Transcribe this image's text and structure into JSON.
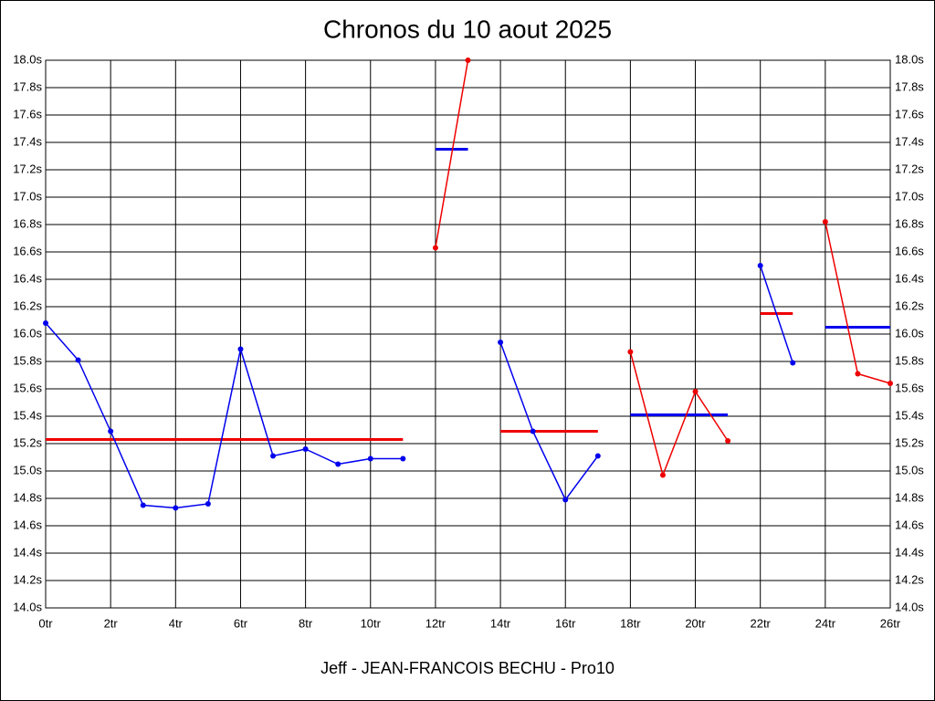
{
  "chart_data": {
    "type": "line",
    "title": "Chronos du 10 aout 2025",
    "xlabel": "Jeff - JEAN-FRANCOIS BECHU - Pro10",
    "xlim": [
      0,
      26
    ],
    "xticks": [
      {
        "value": 0,
        "label": "0tr"
      },
      {
        "value": 2,
        "label": "2tr"
      },
      {
        "value": 4,
        "label": "4tr"
      },
      {
        "value": 6,
        "label": "6tr"
      },
      {
        "value": 8,
        "label": "8tr"
      },
      {
        "value": 10,
        "label": "10tr"
      },
      {
        "value": 12,
        "label": "12tr"
      },
      {
        "value": 14,
        "label": "14tr"
      },
      {
        "value": 16,
        "label": "16tr"
      },
      {
        "value": 18,
        "label": "18tr"
      },
      {
        "value": 20,
        "label": "20tr"
      },
      {
        "value": 22,
        "label": "22tr"
      },
      {
        "value": 24,
        "label": "24tr"
      },
      {
        "value": 26,
        "label": "26tr"
      }
    ],
    "ylim": [
      14.0,
      18.0
    ],
    "yticks": [
      {
        "value": 14.0,
        "label": "14.0s"
      },
      {
        "value": 14.2,
        "label": "14.2s"
      },
      {
        "value": 14.4,
        "label": "14.4s"
      },
      {
        "value": 14.6,
        "label": "14.6s"
      },
      {
        "value": 14.8,
        "label": "14.8s"
      },
      {
        "value": 15.0,
        "label": "15.0s"
      },
      {
        "value": 15.2,
        "label": "15.2s"
      },
      {
        "value": 15.4,
        "label": "15.4s"
      },
      {
        "value": 15.6,
        "label": "15.6s"
      },
      {
        "value": 15.8,
        "label": "15.8s"
      },
      {
        "value": 16.0,
        "label": "16.0s"
      },
      {
        "value": 16.2,
        "label": "16.2s"
      },
      {
        "value": 16.4,
        "label": "16.4s"
      },
      {
        "value": 16.6,
        "label": "16.6s"
      },
      {
        "value": 16.8,
        "label": "16.8s"
      },
      {
        "value": 17.0,
        "label": "17.0s"
      },
      {
        "value": 17.2,
        "label": "17.2s"
      },
      {
        "value": 17.4,
        "label": "17.4s"
      },
      {
        "value": 17.6,
        "label": "17.6s"
      },
      {
        "value": 17.8,
        "label": "17.8s"
      },
      {
        "value": 18.0,
        "label": "18.0s"
      }
    ],
    "grid": true,
    "series": [
      {
        "color": "#0000ee",
        "x": [
          0,
          1,
          2,
          3,
          4,
          5,
          6,
          7,
          8,
          9,
          10,
          11
        ],
        "values": [
          16.08,
          15.81,
          15.29,
          14.75,
          14.73,
          14.76,
          15.89,
          15.11,
          15.16,
          15.05,
          15.09,
          15.09
        ]
      },
      {
        "color": "#ee0000",
        "x": [
          12,
          13
        ],
        "values": [
          16.63,
          18.0
        ]
      },
      {
        "color": "#0000ee",
        "x": [
          14,
          15,
          16,
          17
        ],
        "values": [
          15.94,
          15.29,
          14.79,
          15.11
        ]
      },
      {
        "color": "#ee0000",
        "x": [
          18,
          19,
          20,
          21
        ],
        "values": [
          15.87,
          14.97,
          15.58,
          15.22
        ]
      },
      {
        "color": "#0000ee",
        "x": [
          22,
          23
        ],
        "values": [
          16.5,
          15.79
        ]
      },
      {
        "color": "#ee0000",
        "x": [
          24,
          25,
          26
        ],
        "values": [
          16.82,
          15.71,
          15.64
        ]
      }
    ],
    "averages": [
      {
        "color": "#ee0000",
        "x": [
          0,
          11
        ],
        "value": 15.23
      },
      {
        "color": "#0000ee",
        "x": [
          12,
          13
        ],
        "value": 17.35
      },
      {
        "color": "#ee0000",
        "x": [
          14,
          17
        ],
        "value": 15.29
      },
      {
        "color": "#0000ee",
        "x": [
          18,
          21
        ],
        "value": 15.41
      },
      {
        "color": "#ee0000",
        "x": [
          22,
          23
        ],
        "value": 16.15
      },
      {
        "color": "#0000ee",
        "x": [
          24,
          26
        ],
        "value": 16.05
      }
    ]
  }
}
